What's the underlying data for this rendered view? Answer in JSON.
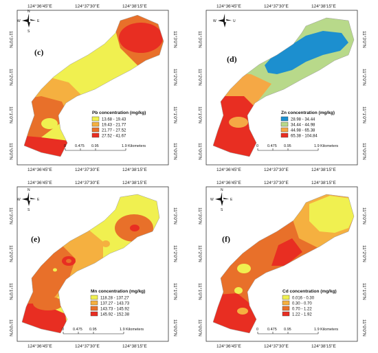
{
  "axis": {
    "top_ticks": [
      "124°36'45\"E",
      "124°37'30\"E",
      "124°38'15\"E"
    ],
    "side_ticks": [
      "11°3'0\"N",
      "11°2'0\"N",
      "11°1'0\"N",
      "11°0'0\"N"
    ]
  },
  "north_arrow": {
    "n": "N",
    "e": "E",
    "s": "S",
    "w": "W",
    "u": "U"
  },
  "scale_bar": {
    "ticks": [
      "0",
      "0.475",
      "0.95",
      "1.9 Kilometers"
    ]
  },
  "panels": [
    {
      "letter": "(c)",
      "legend_title": "Pb concentration (mg/kg)",
      "classes": [
        {
          "label": "13.68 - 19.43",
          "color": "#f0f050"
        },
        {
          "label": "19.43 - 21.77",
          "color": "#f5b040"
        },
        {
          "label": "21.77 - 27.52",
          "color": "#e8702a"
        },
        {
          "label": "27.52 - 41.67",
          "color": "#e82e22"
        }
      ]
    },
    {
      "letter": "(d)",
      "legend_title": "Zn concentration (mg/kg)",
      "classes": [
        {
          "label": "28.98 - 34.44",
          "color": "#1c8fcf"
        },
        {
          "label": "34.44 - 44.98",
          "color": "#b8d98a"
        },
        {
          "label": "44.98 - 65.38",
          "color": "#f5a845"
        },
        {
          "label": "65.38 - 104.84",
          "color": "#e82e22"
        }
      ]
    },
    {
      "letter": "(e)",
      "legend_title": "Mn concentration (mg/kg)",
      "classes": [
        {
          "label": "118.28 - 137.27",
          "color": "#f0f050"
        },
        {
          "label": "137.27 - 143.73",
          "color": "#f5b040"
        },
        {
          "label": "143.73 - 145.92",
          "color": "#e8702a"
        },
        {
          "label": "145.92 - 152.38",
          "color": "#e82e22"
        }
      ]
    },
    {
      "letter": "(f)",
      "legend_title": "Cd concentration (mg/kg)",
      "classes": [
        {
          "label": "0.016 - 0.30",
          "color": "#f0f050"
        },
        {
          "label": "0.30 - 0.70",
          "color": "#f5b040"
        },
        {
          "label": "0.70 - 1.22",
          "color": "#e8702a"
        },
        {
          "label": "1.22 - 1.92",
          "color": "#e82e22"
        }
      ]
    }
  ]
}
